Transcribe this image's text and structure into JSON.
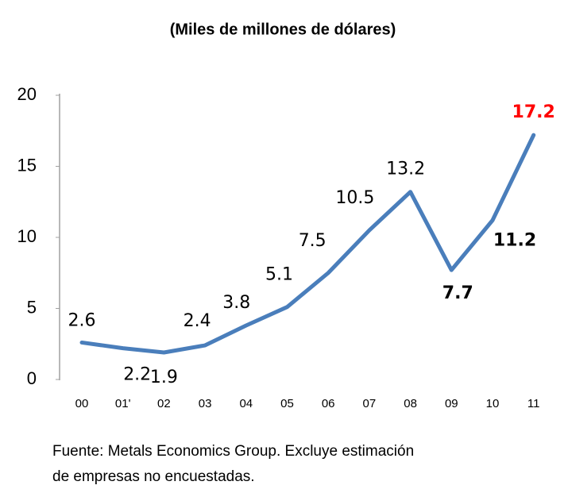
{
  "chart_data": {
    "type": "line",
    "subtitle": "(Miles de millones de dólares)",
    "categories": [
      "00",
      "01'",
      "02",
      "03",
      "04",
      "05",
      "06",
      "07",
      "08",
      "09",
      "10",
      "11"
    ],
    "series": [
      {
        "color": "#4a7ebb",
        "values": [
          2.6,
          2.2,
          1.9,
          2.4,
          3.8,
          5.1,
          7.5,
          10.5,
          13.2,
          7.7,
          11.2,
          17.2
        ]
      }
    ],
    "ylim": [
      0,
      20
    ],
    "yticks": [
      0,
      5,
      10,
      15,
      20
    ],
    "note": [
      "Fuente: Metals Economics Group. Excluye estimación",
      "de empresas no encuestadas."
    ]
  }
}
